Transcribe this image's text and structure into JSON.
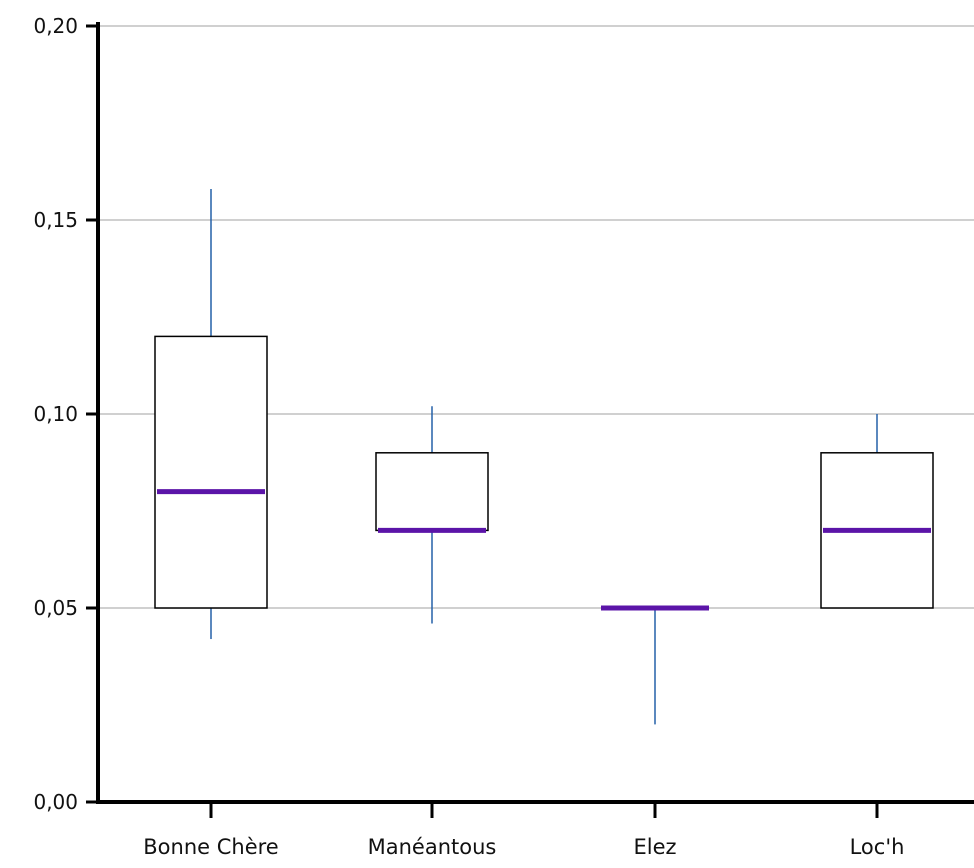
{
  "chart_data": {
    "type": "boxplot",
    "title": "",
    "xlabel": "",
    "ylabel": "",
    "ylim": [
      0,
      0.2
    ],
    "yticks": [
      {
        "value": 0.0,
        "label": "0,00"
      },
      {
        "value": 0.05,
        "label": "0,05"
      },
      {
        "value": 0.1,
        "label": "0,10"
      },
      {
        "value": 0.15,
        "label": "0,15"
      },
      {
        "value": 0.2,
        "label": "0,20"
      }
    ],
    "grid": true,
    "categories": [
      "Bonne Chère",
      "Manéantous",
      "Elez",
      "Loc'h"
    ],
    "boxes": [
      {
        "category": "Bonne Chère",
        "whisker_low": 0.042,
        "q1": 0.05,
        "median": 0.08,
        "q3": 0.12,
        "whisker_high": 0.158
      },
      {
        "category": "Manéantous",
        "whisker_low": 0.046,
        "q1": 0.07,
        "median": 0.07,
        "q3": 0.09,
        "whisker_high": 0.102
      },
      {
        "category": "Elez",
        "whisker_low": 0.02,
        "q1": 0.05,
        "median": 0.05,
        "q3": 0.05,
        "whisker_high": 0.05
      },
      {
        "category": "Loc'h",
        "whisker_low": 0.05,
        "q1": 0.05,
        "median": 0.07,
        "q3": 0.09,
        "whisker_high": 0.1
      }
    ],
    "colors": {
      "median": "#5b14a8",
      "whisker": "#2460a8",
      "box_stroke": "#000000",
      "grid": "#b4b4b4",
      "axis": "#000000"
    }
  }
}
